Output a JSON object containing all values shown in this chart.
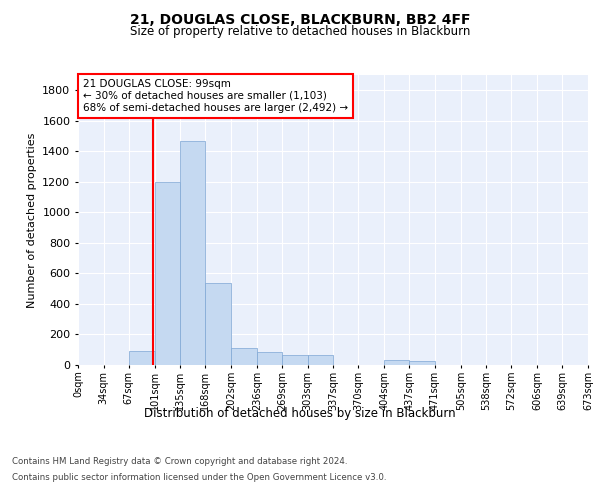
{
  "title1": "21, DOUGLAS CLOSE, BLACKBURN, BB2 4FF",
  "title2": "Size of property relative to detached houses in Blackburn",
  "xlabel": "Distribution of detached houses by size in Blackburn",
  "ylabel": "Number of detached properties",
  "footer1": "Contains HM Land Registry data © Crown copyright and database right 2024.",
  "footer2": "Contains public sector information licensed under the Open Government Licence v3.0.",
  "bin_edges": [
    0,
    34,
    67,
    101,
    135,
    168,
    202,
    236,
    269,
    303,
    337,
    370,
    404,
    437,
    471,
    505,
    538,
    572,
    606,
    639,
    673
  ],
  "bar_heights": [
    0,
    0,
    90,
    1200,
    1470,
    535,
    110,
    85,
    65,
    65,
    0,
    0,
    30,
    25,
    0,
    0,
    0,
    0,
    0,
    0
  ],
  "bar_color": "#c5d9f1",
  "bar_edge_color": "#7da6d4",
  "vline_x": 99,
  "vline_color": "red",
  "ylim": [
    0,
    1900
  ],
  "yticks": [
    0,
    200,
    400,
    600,
    800,
    1000,
    1200,
    1400,
    1600,
    1800
  ],
  "annotation_text": "21 DOUGLAS CLOSE: 99sqm\n← 30% of detached houses are smaller (1,103)\n68% of semi-detached houses are larger (2,492) →",
  "annotation_box_color": "white",
  "annotation_box_edge": "red",
  "plot_bg_color": "#eaf0fb"
}
